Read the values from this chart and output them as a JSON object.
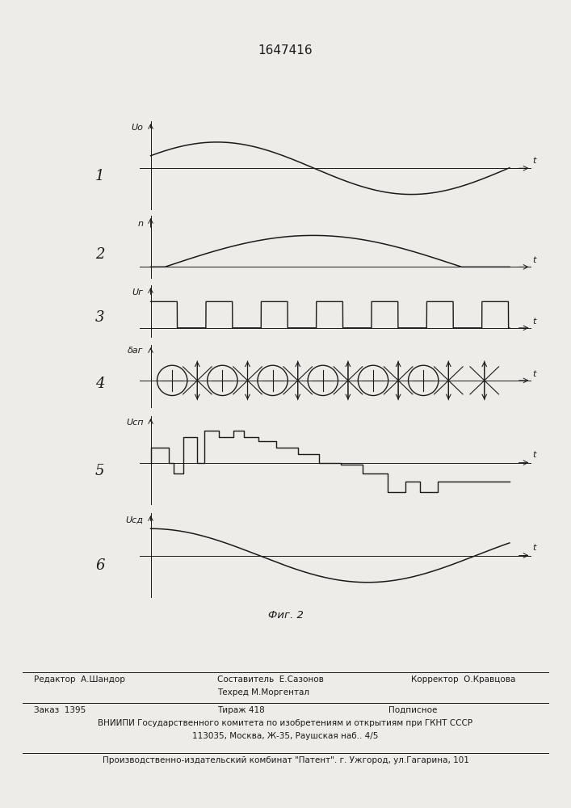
{
  "title": "1647416",
  "fig_caption": "Фиг. 2",
  "background_color": "#eeece8",
  "line_color": "#1a1a1a",
  "row_labels": [
    "1",
    "2",
    "3",
    "4",
    "5",
    "6"
  ],
  "y_labels": [
    "Uо",
    "n",
    "Uг",
    "δаг",
    "Uсп",
    "Uсд"
  ],
  "footer_col1": "Редактор  А.Шандор",
  "footer_col2a": "Составитель  Е.Сазонов",
  "footer_col2b": "Техред М.Моргентал",
  "footer_col3": "Корректор  О.Кравцова",
  "footer_order": "Заказ  1395",
  "footer_tirazh": "Тираж 418",
  "footer_podp": "Подписное",
  "footer_vniipи": "ВНИИПИ Государственного комитета по изобретениям и открытиям при ГКНТ СССР",
  "footer_addr": "113035, Москва, Ж-35, Раушская наб.. 4/5",
  "footer_patent": "Производственно-издательский комбинат \"Патент\". г. Ужгород, ул.Гагарина, 101"
}
